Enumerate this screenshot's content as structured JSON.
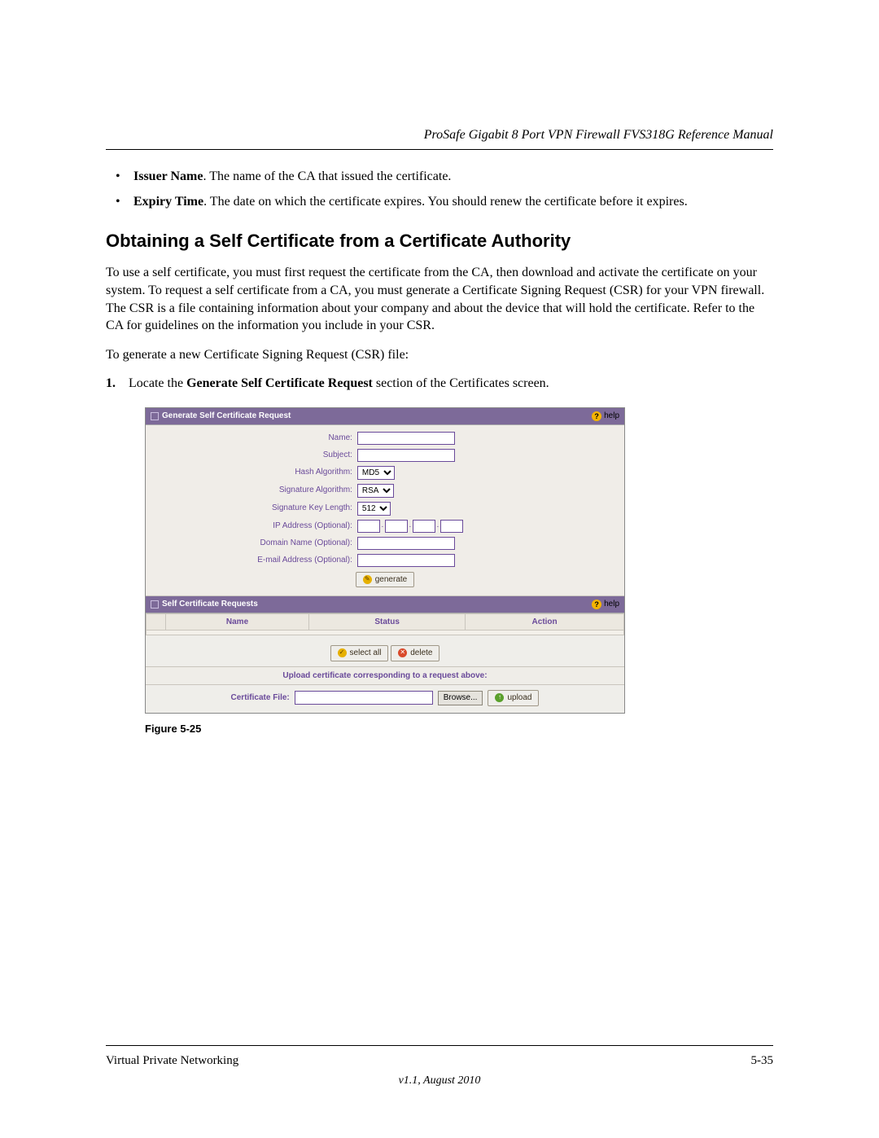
{
  "header": {
    "manual_title": "ProSafe Gigabit 8 Port VPN Firewall FVS318G Reference Manual"
  },
  "definitions": [
    {
      "term": "Issuer Name",
      "desc": ". The name of the CA that issued the certificate."
    },
    {
      "term": "Expiry Time",
      "desc": ". The date on which the certificate expires. You should renew the certificate before it expires."
    }
  ],
  "section_heading": "Obtaining a Self Certificate from a Certificate Authority",
  "para1": "To use a self certificate, you must first request the certificate from the CA, then download and activate the certificate on your system. To request a self certificate from a CA, you must generate a Certificate Signing Request (CSR) for your VPN firewall. The CSR is a file containing information about your company and about the device that will hold the certificate. Refer to the CA for guidelines on the information you include in your CSR.",
  "para2": "To generate a new Certificate Signing Request (CSR) file:",
  "step1_prefix": "Locate the ",
  "step1_bold": "Generate Self Certificate Request",
  "step1_suffix": " section of the Certificates screen.",
  "step1_num": "1.",
  "figure_caption": "Figure 5-25",
  "footer": {
    "left": "Virtual Private Networking",
    "right": "5-35",
    "version": "v1.1, August 2010"
  },
  "screenshot": {
    "panel1_title": "Generate Self Certificate Request",
    "panel2_title": "Self Certificate Requests",
    "help_label": "help",
    "fields": {
      "name": "Name:",
      "subject": "Subject:",
      "hash": "Hash Algorithm:",
      "sig": "Signature Algorithm:",
      "keylen": "Signature Key Length:",
      "ip": "IP Address (Optional):",
      "domain": "Domain Name (Optional):",
      "email": "E-mail Address (Optional):"
    },
    "hash_options": [
      "MD5"
    ],
    "sig_options": [
      "RSA"
    ],
    "keylen_options": [
      "512"
    ],
    "buttons": {
      "generate": "generate",
      "select_all": "select all",
      "delete": "delete",
      "browse": "Browse...",
      "upload": "upload"
    },
    "columns": {
      "name": "Name",
      "status": "Status",
      "action": "Action"
    },
    "upload_band": "Upload certificate corresponding to a request above:",
    "cert_file_label": "Certificate File:",
    "colors": {
      "panel_header_bg": "#7d6a99",
      "accent": "#6a4a9a",
      "body_bg": "#efede8"
    }
  }
}
